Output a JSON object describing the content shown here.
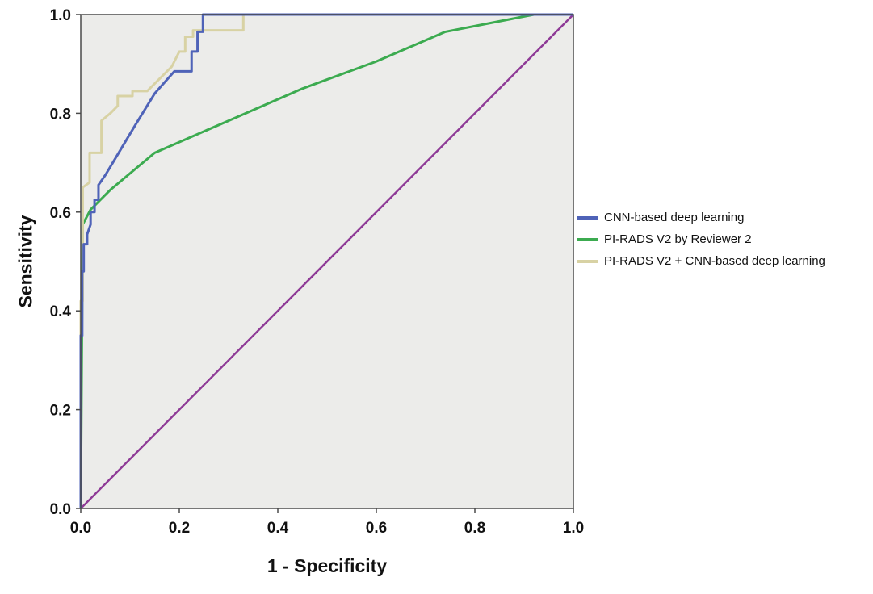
{
  "chart_data": {
    "type": "line",
    "xlabel": "1 - Specificity",
    "ylabel": "Sensitivity",
    "xlim": [
      0,
      1
    ],
    "ylim": [
      0,
      1
    ],
    "grid": false,
    "legend_position": "right",
    "plot_bg": "#ececea",
    "frame_color": "#4a4a4a",
    "text_color": "#111111",
    "xticks": [
      {
        "v": 0.0,
        "label": "0.0"
      },
      {
        "v": 0.2,
        "label": "0.2"
      },
      {
        "v": 0.4,
        "label": "0.4"
      },
      {
        "v": 0.6,
        "label": "0.6"
      },
      {
        "v": 0.8,
        "label": "0.8"
      },
      {
        "v": 1.0,
        "label": "1.0"
      }
    ],
    "yticks": [
      {
        "v": 0.0,
        "label": "0.0"
      },
      {
        "v": 0.2,
        "label": "0.2"
      },
      {
        "v": 0.4,
        "label": "0.4"
      },
      {
        "v": 0.6,
        "label": "0.6"
      },
      {
        "v": 0.8,
        "label": "0.8"
      },
      {
        "v": 1.0,
        "label": "1.0"
      }
    ],
    "reference": {
      "name": "reference-diagonal",
      "color": "#8e3a96",
      "points": [
        [
          0,
          0
        ],
        [
          1,
          1
        ]
      ]
    },
    "series": [
      {
        "name": "CNN-based deep learning",
        "color": "#4f63b8",
        "points": [
          [
            0,
            0
          ],
          [
            0,
            0.35
          ],
          [
            0.003,
            0.35
          ],
          [
            0.003,
            0.48
          ],
          [
            0.006,
            0.48
          ],
          [
            0.006,
            0.535
          ],
          [
            0.013,
            0.535
          ],
          [
            0.013,
            0.555
          ],
          [
            0.02,
            0.575
          ],
          [
            0.02,
            0.6
          ],
          [
            0.028,
            0.6
          ],
          [
            0.028,
            0.625
          ],
          [
            0.036,
            0.625
          ],
          [
            0.036,
            0.655
          ],
          [
            0.05,
            0.675
          ],
          [
            0.08,
            0.725
          ],
          [
            0.11,
            0.775
          ],
          [
            0.15,
            0.84
          ],
          [
            0.19,
            0.885
          ],
          [
            0.225,
            0.885
          ],
          [
            0.225,
            0.925
          ],
          [
            0.237,
            0.925
          ],
          [
            0.237,
            0.965
          ],
          [
            0.248,
            0.965
          ],
          [
            0.248,
            1.0
          ],
          [
            1,
            1
          ]
        ]
      },
      {
        "name": "PI-RADS V2 by Reviewer 2",
        "color": "#3cab50",
        "points": [
          [
            0,
            0
          ],
          [
            0.002,
            0.3
          ],
          [
            0.004,
            0.575
          ],
          [
            0.02,
            0.605
          ],
          [
            0.06,
            0.645
          ],
          [
            0.15,
            0.72
          ],
          [
            0.3,
            0.785
          ],
          [
            0.45,
            0.85
          ],
          [
            0.6,
            0.905
          ],
          [
            0.74,
            0.965
          ],
          [
            0.92,
            1.0
          ],
          [
            1,
            1
          ]
        ]
      },
      {
        "name": "PI-RADS V2 + CNN-based deep learning",
        "color": "#d8d2a4",
        "points": [
          [
            0,
            0
          ],
          [
            0,
            0.42
          ],
          [
            0.004,
            0.42
          ],
          [
            0.004,
            0.65
          ],
          [
            0.018,
            0.66
          ],
          [
            0.018,
            0.72
          ],
          [
            0.042,
            0.72
          ],
          [
            0.042,
            0.785
          ],
          [
            0.06,
            0.8
          ],
          [
            0.075,
            0.815
          ],
          [
            0.075,
            0.835
          ],
          [
            0.105,
            0.835
          ],
          [
            0.105,
            0.845
          ],
          [
            0.135,
            0.845
          ],
          [
            0.16,
            0.87
          ],
          [
            0.185,
            0.895
          ],
          [
            0.2,
            0.925
          ],
          [
            0.212,
            0.925
          ],
          [
            0.212,
            0.955
          ],
          [
            0.228,
            0.955
          ],
          [
            0.228,
            0.968
          ],
          [
            0.33,
            0.968
          ],
          [
            0.33,
            1.0
          ],
          [
            1,
            1
          ]
        ]
      }
    ]
  }
}
